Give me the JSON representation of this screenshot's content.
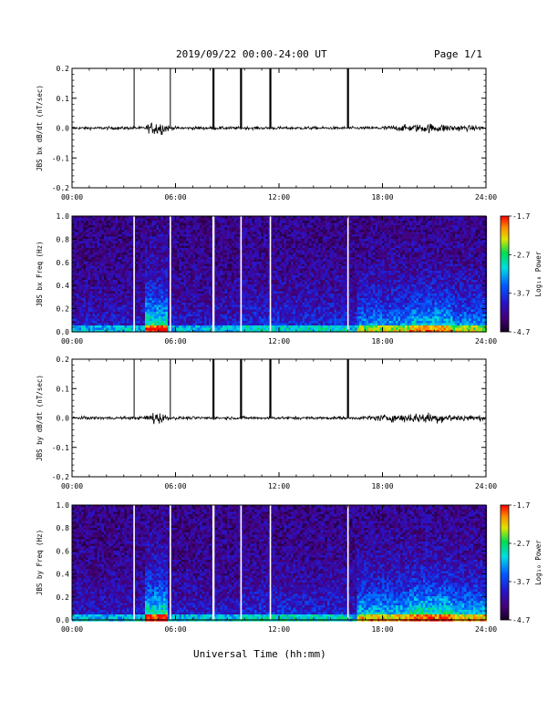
{
  "header": {
    "title": "2019/09/22  00:00-24:00 UT",
    "page": "Page 1/1"
  },
  "x_axis_title": "Universal Time (hh:mm)",
  "colors": {
    "background": "#ffffff",
    "axis": "#000000",
    "marker": "#ffffff"
  },
  "chart_data": [
    {
      "type": "line",
      "ylabel": "JBS bx dB/dt (nT/sec)",
      "ylim": [
        -0.2,
        0.2
      ],
      "yticks": [
        "-0.2",
        "-0.1",
        "0.0",
        "0.1",
        "0.2"
      ],
      "xlim": [
        "00:00",
        "24:00"
      ],
      "xticks": [
        "00:00",
        "06:00",
        "12:00",
        "18:00",
        "24:00"
      ],
      "series": [
        {
          "baseline": 0.0,
          "activity_windows": [
            [
              4.3,
              5.6,
              0.045
            ],
            [
              17.6,
              24.0,
              0.025
            ],
            [
              0.0,
              24.0,
              0.008
            ]
          ]
        }
      ],
      "event_markers_hours": [
        3.6,
        5.7,
        8.2,
        9.8,
        11.5,
        16.0
      ],
      "grid": false
    },
    {
      "type": "heatmap",
      "ylabel": "JBS bx Freq (Hz)",
      "ylim": [
        0.0,
        1.0
      ],
      "yticks": [
        "0.0",
        "0.2",
        "0.4",
        "0.6",
        "0.8",
        "1.0"
      ],
      "xlim": [
        "00:00",
        "24:00"
      ],
      "xticks": [
        "00:00",
        "06:00",
        "12:00",
        "18:00",
        "24:00"
      ],
      "colorbar": {
        "label": "Log₁₀ Power",
        "range": [
          -4.7,
          -1.7
        ],
        "ticks": [
          "-1.7",
          "-2.7",
          "-3.7",
          "-4.7"
        ]
      },
      "event_markers_hours": [
        3.6,
        5.7,
        8.2,
        9.8,
        11.5,
        16.0
      ]
    },
    {
      "type": "line",
      "ylabel": "JBS by dB/dt (nT/sec)",
      "ylim": [
        -0.2,
        0.2
      ],
      "yticks": [
        "-0.2",
        "-0.1",
        "0.0",
        "0.1",
        "0.2"
      ],
      "xlim": [
        "00:00",
        "24:00"
      ],
      "xticks": [
        "00:00",
        "06:00",
        "12:00",
        "18:00",
        "24:00"
      ],
      "series": [
        {
          "baseline": 0.0,
          "activity_windows": [
            [
              4.2,
              5.6,
              0.04
            ],
            [
              16.8,
              24.0,
              0.03
            ],
            [
              0.0,
              24.0,
              0.008
            ]
          ]
        }
      ],
      "event_markers_hours": [
        3.6,
        5.7,
        8.2,
        9.8,
        11.5,
        16.0
      ],
      "grid": false
    },
    {
      "type": "heatmap",
      "ylabel": "JBS by Freq (Hz)",
      "ylim": [
        0.0,
        1.0
      ],
      "yticks": [
        "0.0",
        "0.2",
        "0.4",
        "0.6",
        "0.8",
        "1.0"
      ],
      "xlim": [
        "00:00",
        "24:00"
      ],
      "xticks": [
        "00:00",
        "06:00",
        "12:00",
        "18:00",
        "24:00"
      ],
      "colorbar": {
        "label": "Log₁₀ Power",
        "range": [
          -4.7,
          -1.7
        ],
        "ticks": [
          "-1.7",
          "-2.7",
          "-3.7",
          "-4.7"
        ]
      },
      "event_markers_hours": [
        3.6,
        5.7,
        8.2,
        9.8,
        11.5,
        16.0
      ]
    }
  ]
}
